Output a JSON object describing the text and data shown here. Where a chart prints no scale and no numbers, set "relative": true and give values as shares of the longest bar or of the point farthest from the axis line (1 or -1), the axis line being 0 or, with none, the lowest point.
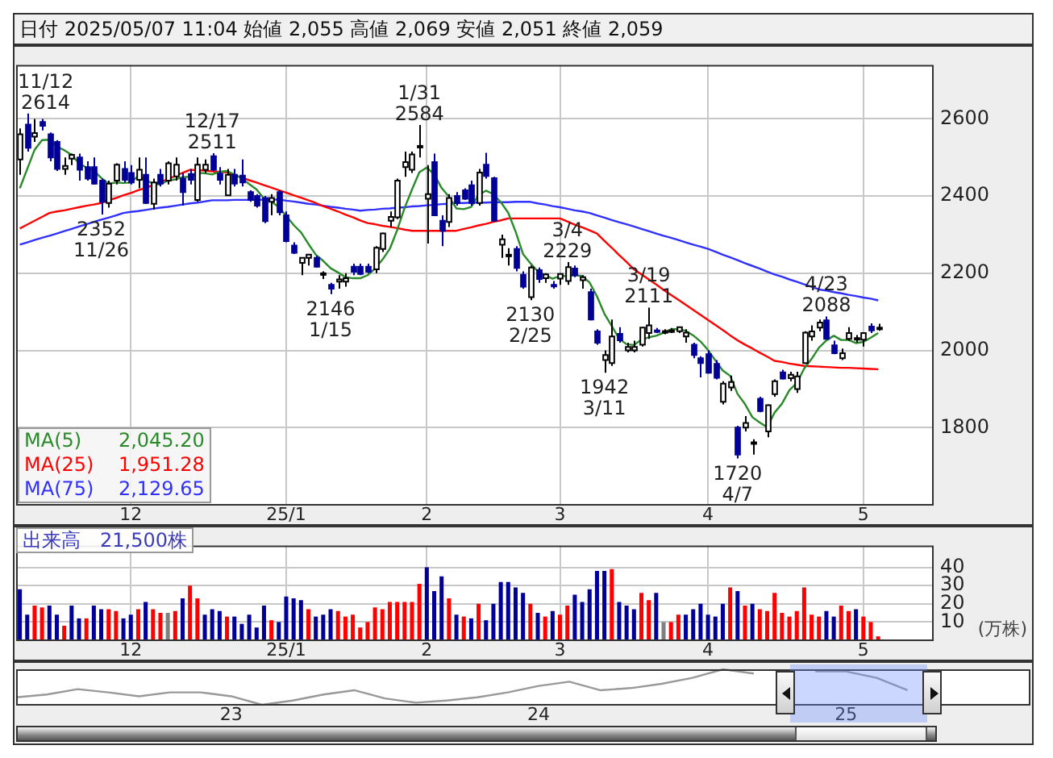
{
  "chart_data": [
    {
      "type": "candlestick",
      "title": "日付 2025/05/07 11:04 始値 2,055 高値 2,069 安値 2,051 終値 2,059",
      "categories": [
        null,
        null,
        null,
        null,
        null,
        null,
        null,
        null,
        null,
        null,
        null,
        null,
        null,
        null,
        null,
        "12",
        null,
        null,
        null,
        null,
        null,
        null,
        null,
        null,
        null,
        null,
        null,
        null,
        null,
        null,
        null,
        null,
        null,
        null,
        null,
        null,
        "25/1",
        null,
        null,
        null,
        null,
        null,
        null,
        null,
        null,
        null,
        null,
        null,
        null,
        null,
        null,
        null,
        null,
        null,
        null,
        "2",
        null,
        null,
        null,
        null,
        null,
        null,
        null,
        null,
        null,
        null,
        null,
        null,
        null,
        null,
        null,
        null,
        null,
        "3",
        null,
        null,
        null,
        null,
        null,
        null,
        null,
        null,
        null,
        null,
        null,
        null,
        null,
        null,
        null,
        null,
        null,
        null,
        null,
        "4",
        null,
        null,
        null,
        null,
        null,
        null,
        null,
        null,
        null,
        null,
        null,
        null,
        null,
        null,
        null,
        null,
        null,
        null,
        null,
        null,
        "5",
        null,
        null,
        null,
        null,
        null,
        null,
        null,
        null,
        null
      ],
      "ohlc": [
        [
          2495,
          2575,
          2455,
          2560
        ],
        [
          2585,
          2614,
          2515,
          2525
        ],
        [
          2554,
          2600,
          2540,
          2563
        ],
        [
          2592,
          2600,
          2570,
          2582
        ],
        [
          2560,
          2565,
          2490,
          2500
        ],
        [
          2540,
          2545,
          2465,
          2470
        ],
        [
          2470,
          2500,
          2455,
          2478
        ],
        [
          2497,
          2510,
          2480,
          2507
        ],
        [
          2500,
          2510,
          2440,
          2468
        ],
        [
          2475,
          2490,
          2440,
          2445
        ],
        [
          2475,
          2500,
          2430,
          2432
        ],
        [
          2440,
          2445,
          2352,
          2385
        ],
        [
          2382,
          2440,
          2370,
          2432
        ],
        [
          2440,
          2485,
          2430,
          2481
        ],
        [
          2470,
          2490,
          2435,
          2442
        ],
        [
          2460,
          2480,
          2430,
          2435
        ],
        [
          2442,
          2500,
          2420,
          2468
        ],
        [
          2455,
          2500,
          2380,
          2382
        ],
        [
          2380,
          2445,
          2365,
          2435
        ],
        [
          2455,
          2470,
          2425,
          2432
        ],
        [
          2440,
          2490,
          2430,
          2485
        ],
        [
          2451,
          2500,
          2440,
          2481
        ],
        [
          2445,
          2460,
          2375,
          2410
        ],
        [
          2457,
          2470,
          2430,
          2442
        ],
        [
          2390,
          2500,
          2385,
          2481
        ],
        [
          2468,
          2495,
          2460,
          2481
        ],
        [
          2503,
          2511,
          2465,
          2468
        ],
        [
          2458,
          2475,
          2430,
          2442
        ],
        [
          2402,
          2470,
          2400,
          2455
        ],
        [
          2455,
          2470,
          2425,
          2432
        ],
        [
          2453,
          2495,
          2425,
          2435
        ],
        [
          2410,
          2415,
          2385,
          2390
        ],
        [
          2400,
          2405,
          2370,
          2375
        ],
        [
          2395,
          2400,
          2330,
          2335
        ],
        [
          2385,
          2405,
          2350,
          2395
        ],
        [
          2410,
          2415,
          2350,
          2358
        ],
        [
          2350,
          2360,
          2280,
          2283
        ],
        [
          2272,
          2280,
          2250,
          2253
        ],
        [
          2227,
          2240,
          2195,
          2240
        ],
        [
          2240,
          2250,
          2220,
          2248
        ],
        [
          2240,
          2245,
          2215,
          2217
        ],
        [
          2198,
          2205,
          2185,
          2200
        ],
        [
          2170,
          2175,
          2146,
          2160
        ],
        [
          2178,
          2195,
          2160,
          2184
        ],
        [
          2178,
          2200,
          2165,
          2187
        ],
        [
          2217,
          2225,
          2195,
          2204
        ],
        [
          2217,
          2225,
          2195,
          2198
        ],
        [
          2217,
          2225,
          2200,
          2204
        ],
        [
          2210,
          2270,
          2200,
          2266
        ],
        [
          2263,
          2305,
          2255,
          2303
        ],
        [
          2336,
          2360,
          2320,
          2346
        ],
        [
          2345,
          2445,
          2340,
          2440
        ],
        [
          2475,
          2515,
          2450,
          2488
        ],
        [
          2468,
          2515,
          2460,
          2508
        ],
        [
          2527,
          2584,
          2500,
          2530
        ],
        [
          2393,
          2480,
          2277,
          2405
        ],
        [
          2488,
          2510,
          2350,
          2350
        ],
        [
          2336,
          2350,
          2270,
          2310
        ],
        [
          2333,
          2405,
          2320,
          2395
        ],
        [
          2400,
          2410,
          2375,
          2382
        ],
        [
          2415,
          2420,
          2390,
          2393
        ],
        [
          2428,
          2440,
          2375,
          2382
        ],
        [
          2382,
          2470,
          2375,
          2461
        ],
        [
          2481,
          2512,
          2445,
          2452
        ],
        [
          2446,
          2450,
          2335,
          2336
        ],
        [
          2274,
          2300,
          2240,
          2288
        ],
        [
          2245,
          2265,
          2220,
          2248
        ],
        [
          2263,
          2270,
          2205,
          2214
        ],
        [
          2196,
          2205,
          2160,
          2165
        ],
        [
          2138,
          2220,
          2130,
          2215
        ],
        [
          2208,
          2215,
          2175,
          2185
        ],
        [
          2187,
          2200,
          2175,
          2197
        ],
        [
          2170,
          2180,
          2160,
          2168
        ],
        [
          2186,
          2200,
          2170,
          2198
        ],
        [
          2180,
          2229,
          2170,
          2216
        ],
        [
          2212,
          2220,
          2190,
          2195
        ],
        [
          2182,
          2195,
          2160,
          2190
        ],
        [
          2151,
          2160,
          2078,
          2080
        ],
        [
          2049,
          2055,
          2015,
          2020
        ],
        [
          1975,
          2000,
          1942,
          1988
        ],
        [
          1967,
          2080,
          1960,
          2036
        ],
        [
          2043,
          2060,
          2020,
          2026
        ],
        [
          2000,
          2020,
          1995,
          2009
        ],
        [
          2000,
          2025,
          1995,
          2009
        ],
        [
          2015,
          2060,
          2010,
          2059
        ],
        [
          2045,
          2111,
          2030,
          2065
        ],
        [
          2052,
          2058,
          2045,
          2048
        ],
        [
          2048,
          2055,
          2042,
          2050
        ],
        [
          2050,
          2058,
          2045,
          2052
        ],
        [
          2050,
          2060,
          2045,
          2060
        ],
        [
          2036,
          2055,
          2020,
          2046
        ],
        [
          2015,
          2020,
          1980,
          1988
        ],
        [
          1980,
          1985,
          1930,
          1967
        ],
        [
          1990,
          2000,
          1940,
          1942
        ],
        [
          1965,
          1975,
          1925,
          1929
        ],
        [
          1867,
          1920,
          1860,
          1914
        ],
        [
          1904,
          1935,
          1895,
          1918
        ],
        [
          1800,
          1805,
          1720,
          1730
        ],
        [
          1800,
          1830,
          1790,
          1812
        ],
        [
          1760,
          1770,
          1730,
          1762
        ],
        [
          1875,
          1880,
          1840,
          1843
        ],
        [
          1790,
          1860,
          1775,
          1858
        ],
        [
          1887,
          1925,
          1880,
          1920
        ],
        [
          1943,
          1950,
          1925,
          1927
        ],
        [
          1928,
          1945,
          1920,
          1937
        ],
        [
          1900,
          1945,
          1890,
          1933
        ],
        [
          1967,
          2050,
          1965,
          2046
        ],
        [
          2036,
          2065,
          2025,
          2049
        ],
        [
          2059,
          2080,
          2050,
          2072
        ],
        [
          2078,
          2088,
          2030,
          2030
        ],
        [
          2013,
          2025,
          1990,
          1993
        ],
        [
          1980,
          2005,
          1975,
          1993
        ],
        [
          2030,
          2060,
          2025,
          2045
        ],
        [
          2030,
          2040,
          2020,
          2032
        ],
        [
          2028,
          2045,
          2010,
          2045
        ],
        [
          2062,
          2070,
          2045,
          2052
        ],
        [
          2055,
          2069,
          2051,
          2059
        ],
        null,
        null,
        null,
        null,
        null,
        null,
        null
      ],
      "colors": [
        "#ffffff",
        "#000099",
        "#ffffff",
        "#000099",
        "#000099",
        "#000099",
        "#ffffff",
        "#ffffff",
        "#000099",
        "#000099",
        "#000099",
        "#000099",
        "#ffffff",
        "#ffffff",
        "#000099",
        "#000099",
        "#ffffff",
        "#000099",
        "#ffffff",
        "#000099",
        "#ffffff",
        "#ffffff",
        "#000099",
        "#000099",
        "#ffffff",
        "#ffffff",
        "#000099",
        "#000099",
        "#ffffff",
        "#000099",
        "#000099",
        "#000099",
        "#000099",
        "#000099",
        "#ffffff",
        "#000099",
        "#000099",
        "#000099",
        "#ffffff",
        "#ffffff",
        "#000099",
        "#ffffff",
        "#000099",
        "#ffffff",
        "#ffffff",
        "#000099",
        "#000099",
        "#000099",
        "#ffffff",
        "#ffffff",
        "#ffffff",
        "#ffffff",
        "#ffffff",
        "#ffffff",
        "#ffffff",
        "#ffffff",
        "#000099",
        "#000099",
        "#ffffff",
        "#000099",
        "#000099",
        "#000099",
        "#ffffff",
        "#000099",
        "#000099",
        "#ffffff",
        "#ffffff",
        "#000099",
        "#000099",
        "#ffffff",
        "#000099",
        "#ffffff",
        "#000099",
        "#ffffff",
        "#ffffff",
        "#000099",
        "#ffffff",
        "#000099",
        "#000099",
        "#ffffff",
        "#ffffff",
        "#000099",
        "#ffffff",
        "#ffffff",
        "#ffffff",
        "#ffffff",
        "#000099",
        "#ffffff",
        "#ffffff",
        "#ffffff",
        "#ffffff",
        "#000099",
        "#000099",
        "#000099",
        "#000099",
        "#ffffff",
        "#ffffff",
        "#000099",
        "#ffffff",
        "#ffffff",
        "#000099",
        "#ffffff",
        "#ffffff",
        "#000099",
        "#ffffff",
        "#ffffff",
        "#ffffff",
        "#ffffff",
        "#ffffff",
        "#000099",
        "#000099",
        "#ffffff",
        "#ffffff",
        "#ffffff",
        "#ffffff",
        "#000099",
        "#ffffff",
        null,
        null,
        null,
        null,
        null,
        null,
        null
      ],
      "series": [
        {
          "name": "MA(5)      2,045.20",
          "type": "line",
          "color": "#2a8a2a",
          "values": [
            2420,
            2470,
            2520,
            2545,
            2546,
            2528,
            2519,
            2507,
            2485,
            2474,
            2466,
            2447,
            2432,
            2435,
            2434,
            2435,
            2452,
            2442,
            2432,
            2430,
            2440,
            2443,
            2449,
            2450,
            2460,
            2459,
            2456,
            2463,
            2465,
            2456,
            2446,
            2431,
            2417,
            2393,
            2386,
            2371,
            2349,
            2325,
            2306,
            2276,
            2248,
            2232,
            2213,
            2202,
            2190,
            2187,
            2187,
            2195,
            2212,
            2235,
            2263,
            2312,
            2369,
            2417,
            2462,
            2474,
            2456,
            2421,
            2398,
            2368,
            2366,
            2372,
            2403,
            2414,
            2405,
            2384,
            2357,
            2308,
            2250,
            2226,
            2205,
            2195,
            2186,
            2193,
            2193,
            2195,
            2193,
            2176,
            2140,
            2095,
            2063,
            2030,
            2016,
            2014,
            2028,
            2034,
            2038,
            2046,
            2055,
            2055,
            2051,
            2039,
            2023,
            2001,
            1974,
            1948,
            1934,
            1887,
            1861,
            1827,
            1813,
            1801,
            1839,
            1862,
            1897,
            1915,
            1953,
            1978,
            2007,
            2026,
            2038,
            2027,
            2027,
            2019,
            2022,
            2033,
            2045.2,
            null,
            null,
            null,
            null,
            null,
            null,
            null
          ]
        },
        {
          "name": "MA(25)    1,951.28",
          "type": "line",
          "color": "#ff0000",
          "values": [
            2316,
            2326,
            2336,
            2346,
            2356,
            2360,
            2363,
            2367,
            2371,
            2375,
            2378,
            2382,
            2389,
            2395,
            2402,
            2408,
            2415,
            2421,
            2428,
            2436,
            2444,
            2452,
            2460,
            2468,
            2467,
            2466,
            2464,
            2463,
            2461,
            2454,
            2448,
            2441,
            2435,
            2428,
            2422,
            2415,
            2409,
            2402,
            2396,
            2389,
            2382,
            2374,
            2367,
            2360,
            2352,
            2345,
            2337,
            2330,
            2327,
            2323,
            2320,
            2317,
            2313,
            2310,
            2310,
            2310,
            2310,
            2310,
            2310,
            2310,
            2315,
            2319,
            2324,
            2328,
            2333,
            2337,
            2342,
            2342,
            2342,
            2342,
            2342,
            2342,
            2342,
            2342,
            2334,
            2326,
            2319,
            2311,
            2303,
            2284,
            2266,
            2247,
            2229,
            2210,
            2197,
            2184,
            2171,
            2157,
            2144,
            2131,
            2118,
            2105,
            2092,
            2079,
            2066,
            2053,
            2039,
            2026,
            2015,
            2005,
            1994,
            1984,
            1973,
            1970,
            1966,
            1963,
            1960,
            1959,
            1958,
            1957,
            1956,
            1955,
            1955,
            1954,
            1953,
            1952,
            1951.28,
            null,
            null,
            null,
            null,
            null,
            null,
            null
          ]
        },
        {
          "name": "MA(75)    2,129.65",
          "type": "line",
          "color": "#3030ff",
          "values": [
            2274,
            2280,
            2286,
            2292,
            2297,
            2303,
            2309,
            2315,
            2321,
            2327,
            2333,
            2339,
            2344,
            2350,
            2356,
            2359,
            2361,
            2364,
            2367,
            2370,
            2372,
            2375,
            2378,
            2381,
            2383,
            2386,
            2389,
            2389,
            2389,
            2390,
            2390,
            2390,
            2390,
            2391,
            2391,
            2391,
            2388,
            2386,
            2383,
            2380,
            2378,
            2375,
            2372,
            2370,
            2367,
            2365,
            2362,
            2364,
            2365,
            2367,
            2368,
            2370,
            2371,
            2373,
            2374,
            2376,
            2377,
            2379,
            2380,
            2382,
            2382,
            2383,
            2383,
            2383,
            2384,
            2384,
            2384,
            2385,
            2385,
            2385,
            2381,
            2378,
            2374,
            2371,
            2367,
            2363,
            2360,
            2356,
            2350,
            2344,
            2338,
            2332,
            2327,
            2321,
            2315,
            2309,
            2303,
            2297,
            2292,
            2286,
            2280,
            2274,
            2269,
            2263,
            2256,
            2248,
            2241,
            2234,
            2226,
            2219,
            2212,
            2204,
            2197,
            2191,
            2184,
            2178,
            2171,
            2165,
            2158,
            2155,
            2151,
            2148,
            2144,
            2141,
            2137,
            2134,
            2129.65,
            null,
            null,
            null,
            null,
            null,
            null,
            null
          ]
        }
      ],
      "ylim": [
        1600,
        2740
      ],
      "yticks": [
        1800,
        2000,
        2200,
        2400,
        2600
      ],
      "grid": true,
      "legend": "bottom left",
      "annotations": [
        {
          "text": "11/12\n2614",
          "y": 2614
        },
        {
          "text": "2352\n11/26",
          "y": 2352
        },
        {
          "text": "12/17\n2511",
          "y": 2511
        },
        {
          "text": "2146\n1/15",
          "y": 2146
        },
        {
          "text": "1/31\n2584",
          "y": 2584
        },
        {
          "text": "2130\n2/25",
          "y": 2130
        },
        {
          "text": "3/4\n2229",
          "y": 2229
        },
        {
          "text": "1942\n3/11",
          "y": 1942
        },
        {
          "text": "3/19\n2111",
          "y": 2111
        },
        {
          "text": "1720\n4/7",
          "y": 1720
        },
        {
          "text": "4/23\n2088",
          "y": 2088
        }
      ]
    },
    {
      "type": "bar",
      "title": "出来高　21,500株",
      "ylabel": "(万株)",
      "categories": [
        null,
        null,
        null,
        null,
        null,
        null,
        null,
        null,
        null,
        null,
        null,
        null,
        null,
        null,
        null,
        "12",
        null,
        null,
        null,
        null,
        null,
        null,
        null,
        null,
        null,
        null,
        null,
        null,
        null,
        null,
        null,
        null,
        null,
        null,
        null,
        null,
        "25/1",
        null,
        null,
        null,
        null,
        null,
        null,
        null,
        null,
        null,
        null,
        null,
        null,
        null,
        null,
        null,
        null,
        null,
        null,
        "2",
        null,
        null,
        null,
        null,
        null,
        null,
        null,
        null,
        null,
        null,
        null,
        null,
        null,
        null,
        null,
        null,
        null,
        "3",
        null,
        null,
        null,
        null,
        null,
        null,
        null,
        null,
        null,
        null,
        null,
        null,
        null,
        null,
        null,
        null,
        null,
        null,
        null,
        "4",
        null,
        null,
        null,
        null,
        null,
        null,
        null,
        null,
        null,
        null,
        null,
        null,
        null,
        null,
        null,
        null,
        null,
        null,
        null,
        null,
        "5",
        null,
        null,
        null,
        null,
        null,
        null,
        null,
        null,
        null
      ],
      "values": [
        28,
        14,
        19,
        18,
        19,
        14,
        8,
        19,
        12,
        12,
        19,
        17,
        17,
        16,
        12,
        14,
        17,
        21,
        17,
        15,
        15,
        16,
        23,
        30,
        23,
        14,
        17,
        16,
        13,
        13,
        9,
        14,
        7,
        19,
        11,
        10,
        24,
        23,
        22,
        17,
        13,
        14,
        17,
        16,
        13,
        14,
        7,
        10,
        18,
        17,
        21,
        21,
        21,
        21,
        31,
        40,
        27,
        35,
        23,
        14,
        13,
        12,
        20,
        11,
        20,
        32,
        32,
        29,
        26,
        20,
        15,
        13,
        16,
        14,
        19,
        25,
        21,
        28,
        38,
        38,
        39,
        21,
        19,
        17,
        26,
        22,
        26,
        10,
        10,
        14,
        14,
        17,
        20,
        14,
        13,
        20,
        29,
        27,
        19,
        20,
        17,
        16,
        26,
        15,
        13,
        16,
        29,
        14,
        13,
        16,
        13,
        19,
        16,
        17,
        13,
        10,
        2.15,
        null,
        null,
        null,
        null,
        null,
        null,
        null
      ],
      "colors": [
        "#000099",
        "#000099",
        "#ff0000",
        "#ff0000",
        "#000099",
        "#000099",
        "#ff0000",
        "#000099",
        "#000099",
        "#ff0000",
        "#000099",
        "#000099",
        "#ff0000",
        "#ff0000",
        "#000099",
        "#000099",
        "#ff0000",
        "#000099",
        "#ff0000",
        "#ff0000",
        "#808080",
        "#ff0000",
        "#000099",
        "#ff0000",
        "#ff0000",
        "#000099",
        "#000099",
        "#000099",
        "#ff0000",
        "#000099",
        "#000099",
        "#000099",
        "#000099",
        "#000099",
        "#ff0000",
        "#000099",
        "#000099",
        "#000099",
        "#000099",
        "#ff0000",
        "#000099",
        "#000099",
        "#000099",
        "#ff0000",
        "#ff0000",
        "#ff0000",
        "#ff0000",
        "#ff0000",
        "#ff0000",
        "#ff0000",
        "#ff0000",
        "#ff0000",
        "#ff0000",
        "#ff0000",
        "#ff0000",
        "#000099",
        "#000099",
        "#000099",
        "#ff0000",
        "#000099",
        "#ff0000",
        "#000099",
        "#ff0000",
        "#000099",
        "#000099",
        "#000099",
        "#000099",
        "#000099",
        "#000099",
        "#ff0000",
        "#000099",
        "#ff0000",
        "#000099",
        "#ff0000",
        "#ff0000",
        "#000099",
        "#000099",
        "#000099",
        "#000099",
        "#000099",
        "#ff0000",
        "#000099",
        "#000099",
        "#000099",
        "#ff0000",
        "#ff0000",
        "#000099",
        "#808080",
        "#ff0000",
        "#ff0000",
        "#000099",
        "#000099",
        "#000099",
        "#000099",
        "#000099",
        "#000099",
        "#ff0000",
        "#000099",
        "#ff0000",
        "#000099",
        "#ff0000",
        "#ff0000",
        "#ff0000",
        "#ff0000",
        "#ff0000",
        "#ff0000",
        "#ff0000",
        "#ff0000",
        "#ff0000",
        "#000099",
        "#000099",
        "#ff0000",
        "#ff0000",
        "#000099",
        "#ff0000",
        "#ff0000",
        "#ff0000",
        null,
        null,
        null,
        null,
        null,
        null,
        null
      ],
      "ylim": [
        0,
        52
      ],
      "yticks": [
        10,
        20,
        30,
        40
      ],
      "grid": true
    },
    {
      "type": "line",
      "relative": true,
      "color": "#999999",
      "categories": [
        null,
        null,
        null,
        null,
        null,
        null,
        null,
        "23",
        null,
        null,
        null,
        null,
        null,
        null,
        null,
        null,
        null,
        "24",
        null,
        null,
        null,
        null,
        null,
        null,
        null,
        null,
        null,
        "25",
        null,
        null,
        null,
        null,
        null,
        null
      ],
      "values": [
        0.21,
        0.29,
        0.44,
        0.35,
        0.24,
        0.35,
        0.35,
        0.24,
        0,
        0.12,
        0.29,
        0.41,
        0.18,
        0.06,
        0.12,
        0.21,
        0.35,
        0.53,
        0.65,
        0.41,
        0.47,
        0.59,
        0.76,
        1,
        0.88,
        null,
        0.94,
        0.94,
        0.76,
        0.41,
        null,
        null,
        null,
        null
      ]
    }
  ]
}
